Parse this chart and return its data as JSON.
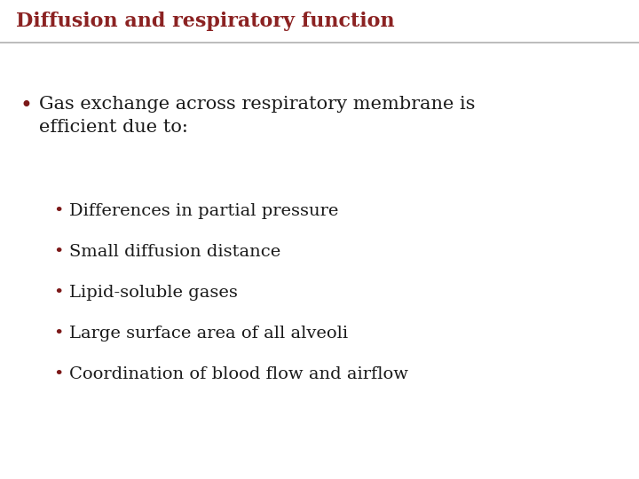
{
  "title": "Diffusion and respiratory function",
  "title_color": "#8B2222",
  "title_fontsize": 16,
  "background_color": "#FFFFFF",
  "header_line_color": "#B0B0B0",
  "text_color": "#1a1a1a",
  "bullet_color": "#7B1818",
  "main_bullet_text_line1": "Gas exchange across respiratory membrane is",
  "main_bullet_text_line2": "efficient due to:",
  "main_bullet_fontsize": 15,
  "sub_bullets": [
    "Differences in partial pressure",
    "Small diffusion distance",
    "Lipid-soluble gases",
    "Large surface area of all alveoli",
    "Coordination of blood flow and airflow"
  ],
  "sub_bullet_fontsize": 14,
  "header_bg_color": "#EFEFEF"
}
